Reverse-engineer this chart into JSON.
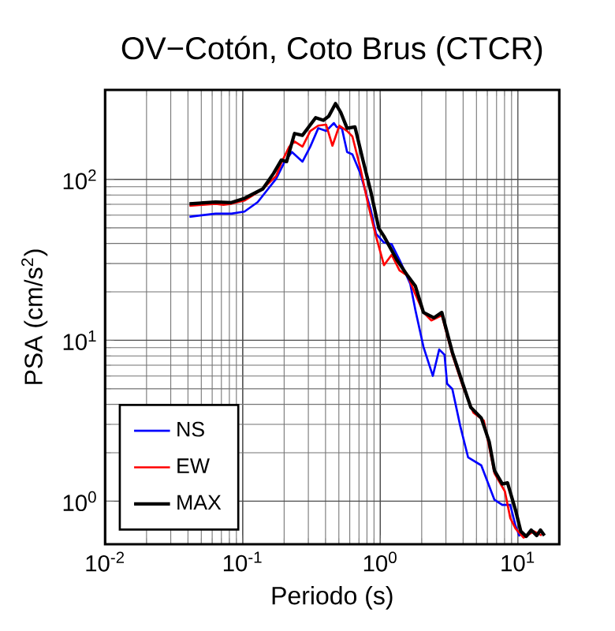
{
  "chart_data": {
    "type": "line",
    "title": "OV−Cotón, Coto Brus (CTCR)",
    "xlabel": "Periodo (s)",
    "ylabel": "PSA (cm/s$^{2}$)",
    "log": "xy",
    "grid": true,
    "legend": "bottom left",
    "line_style": "solid",
    "marker": "none",
    "xlim": [
      0.01,
      20
    ],
    "ylim": [
      0.54,
      360
    ],
    "xticks": [
      {
        "value": 0.01,
        "label": "10$^{-2}$"
      },
      {
        "value": 0.1,
        "label": "10$^{-1}$"
      },
      {
        "value": 1,
        "label": "10$^{0}$"
      },
      {
        "value": 10,
        "label": "10$^{1}$"
      }
    ],
    "yticks": [
      {
        "value": 1,
        "label": "10$^{0}$"
      },
      {
        "value": 10,
        "label": "10$^{1}$"
      },
      {
        "value": 100,
        "label": "10$^{2}$"
      }
    ],
    "series": [
      {
        "name": "NS",
        "color": "#0000ff",
        "x": [
          0.041,
          0.0635,
          0.0828,
          0.103,
          0.1285,
          0.153,
          0.175,
          0.2,
          0.228,
          0.272,
          0.31,
          0.354,
          0.404,
          0.46,
          0.482,
          0.526,
          0.574,
          0.627,
          0.716,
          0.853,
          0.931,
          1.064,
          1.21,
          1.38,
          1.65,
          1.8,
          2.06,
          2.41,
          2.68,
          2.93,
          3.06,
          3.34,
          3.81,
          4.35,
          5.42,
          6.76,
          7.71,
          8.81,
          9.62,
          10.3
        ],
        "values": [
          58.6,
          61.3,
          61.3,
          63.1,
          72.3,
          87.3,
          101,
          127,
          148,
          129,
          160,
          208,
          200,
          224,
          212,
          208,
          148,
          143,
          109,
          64.6,
          46.0,
          40.5,
          39.6,
          31.6,
          22.5,
          15.4,
          9.1,
          6.01,
          8.77,
          8.13,
          5.37,
          4.98,
          2.94,
          1.87,
          1.67,
          1.02,
          0.948,
          0.948,
          0.702,
          0.604
        ]
      },
      {
        "name": "EW",
        "color": "#ff0000",
        "x": [
          0.041,
          0.0635,
          0.0724,
          0.0828,
          0.103,
          0.14,
          0.175,
          0.191,
          0.218,
          0.238,
          0.272,
          0.31,
          0.354,
          0.404,
          0.449,
          0.504,
          0.574,
          0.627,
          0.716,
          0.817,
          0.931,
          1.064,
          1.21,
          1.38,
          1.58,
          1.8,
          2.06,
          2.35,
          2.8,
          3.34,
          3.98,
          4.75,
          5.66,
          6.76,
          8.05,
          8.81,
          9.62,
          11.0,
          13.1,
          14.9
        ],
        "values": [
          68.6,
          70.6,
          69.6,
          70.6,
          73.9,
          87.3,
          105,
          127,
          160,
          172,
          160,
          200,
          216,
          219,
          162,
          216,
          200,
          185,
          118,
          69.6,
          44.3,
          29.3,
          34.0,
          27.2,
          25.2,
          19.3,
          14.9,
          13.3,
          14.3,
          8.13,
          5.17,
          3.55,
          3.17,
          1.49,
          1.15,
          0.785,
          0.676,
          0.594,
          0.65,
          0.612
        ]
      },
      {
        "name": "MAX",
        "color": "#000000",
        "x": [
          0.041,
          0.0635,
          0.0828,
          0.103,
          0.14,
          0.1675,
          0.191,
          0.2085,
          0.238,
          0.272,
          0.339,
          0.386,
          0.422,
          0.473,
          0.516,
          0.574,
          0.655,
          0.748,
          0.853,
          0.975,
          1.064,
          1.32,
          1.58,
          1.8,
          2.06,
          2.45,
          2.8,
          3.34,
          3.98,
          4.55,
          5.42,
          6.19,
          6.76,
          7.71,
          8.41,
          9.62,
          10.5,
          11.5,
          12.5,
          13.7,
          14.6,
          15.6
        ],
        "values": [
          70.6,
          72.3,
          71.8,
          76.3,
          87.3,
          109,
          132,
          129,
          193,
          188,
          242,
          233,
          247,
          296,
          261,
          208,
          212,
          132,
          84.1,
          49.7,
          44.3,
          31.6,
          25.2,
          21.7,
          14.9,
          13.8,
          14.9,
          8.43,
          5.37,
          3.83,
          3.29,
          2.34,
          1.55,
          1.28,
          1.3,
          0.879,
          0.65,
          0.604,
          0.661,
          0.612,
          0.661,
          0.612
        ]
      }
    ]
  }
}
